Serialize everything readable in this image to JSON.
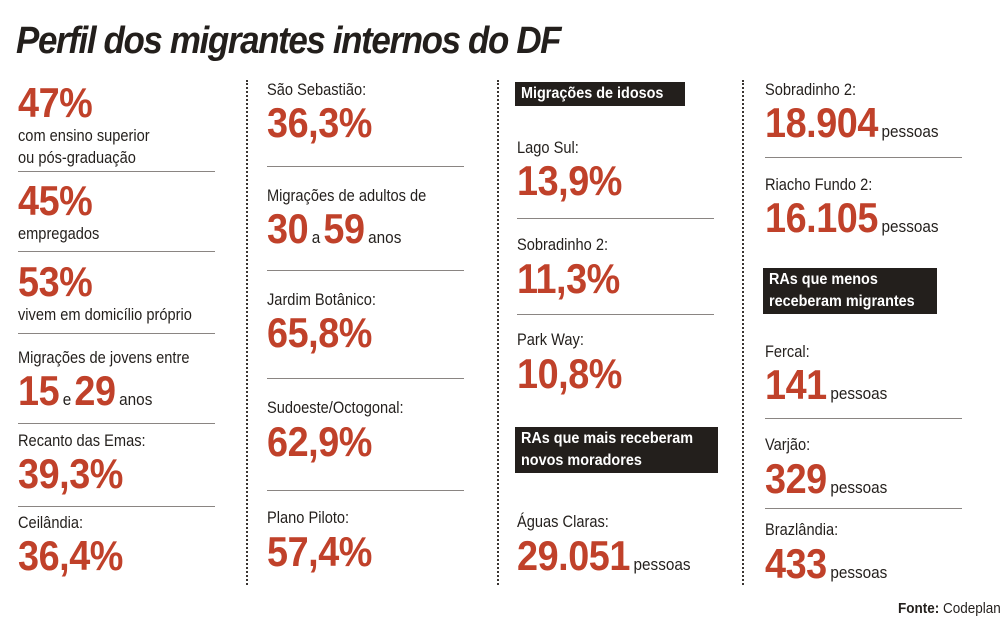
{
  "title": "Perfil dos migrantes internos do DF",
  "colors": {
    "accent": "#c0412a",
    "text": "#231f1c",
    "tag_bg": "#231f1c"
  },
  "col1": {
    "ensino": {
      "value": "47%",
      "line1": "com ensino superior",
      "line2": "ou pós-graduação"
    },
    "empregados": {
      "value": "45%",
      "label": "empregados"
    },
    "domicilio": {
      "value": "53%",
      "label": "vivem em domicílio próprio"
    },
    "jovens": {
      "label": "Migrações de jovens entre",
      "from": "15",
      "and": "e",
      "to": "29",
      "unit": "anos"
    },
    "recanto": {
      "label": "Recanto das Emas:",
      "value": "39,3%"
    },
    "ceilandia": {
      "label": "Ceilândia:",
      "value": "36,4%"
    }
  },
  "col2": {
    "sao_sebastiao": {
      "label": "São Sebastião:",
      "value": "36,3%"
    },
    "adultos": {
      "label": "Migrações de adultos de",
      "from": "30",
      "and": "a",
      "to": "59",
      "unit": "anos"
    },
    "jardim_botanico": {
      "label": "Jardim Botânico:",
      "value": "65,8%"
    },
    "sudoeste": {
      "label": "Sudoeste/Octogonal:",
      "value": "62,9%"
    },
    "plano_piloto": {
      "label": "Plano Piloto:",
      "value": "57,4%"
    }
  },
  "col3": {
    "idosos_tag": "Migrações de idosos",
    "lago_sul": {
      "label": "Lago Sul:",
      "value": "13,9%"
    },
    "sobradinho2": {
      "label": "Sobradinho 2:",
      "value": "11,3%"
    },
    "park_way": {
      "label": "Park Way:",
      "value": "10,8%"
    },
    "mais_tag": {
      "line1": "RAs que mais receberam",
      "line2": "novos moradores"
    },
    "aguas_claras": {
      "label": "Águas Claras:",
      "value": "29.051",
      "unit": "pessoas"
    }
  },
  "col4": {
    "sobradinho2": {
      "label": "Sobradinho 2:",
      "value": "18.904",
      "unit": "pessoas"
    },
    "riacho_fundo2": {
      "label": "Riacho Fundo 2:",
      "value": "16.105",
      "unit": "pessoas"
    },
    "menos_tag": {
      "line1": "RAs que menos",
      "line2": "receberam migrantes"
    },
    "fercal": {
      "label": "Fercal:",
      "value": "141",
      "unit": "pessoas"
    },
    "varjao": {
      "label": "Varjão:",
      "value": "329",
      "unit": "pessoas"
    },
    "brazlandia": {
      "label": "Brazlândia:",
      "value": "433",
      "unit": "pessoas"
    }
  },
  "source": {
    "label": "Fonte:",
    "value": "Codeplan"
  }
}
